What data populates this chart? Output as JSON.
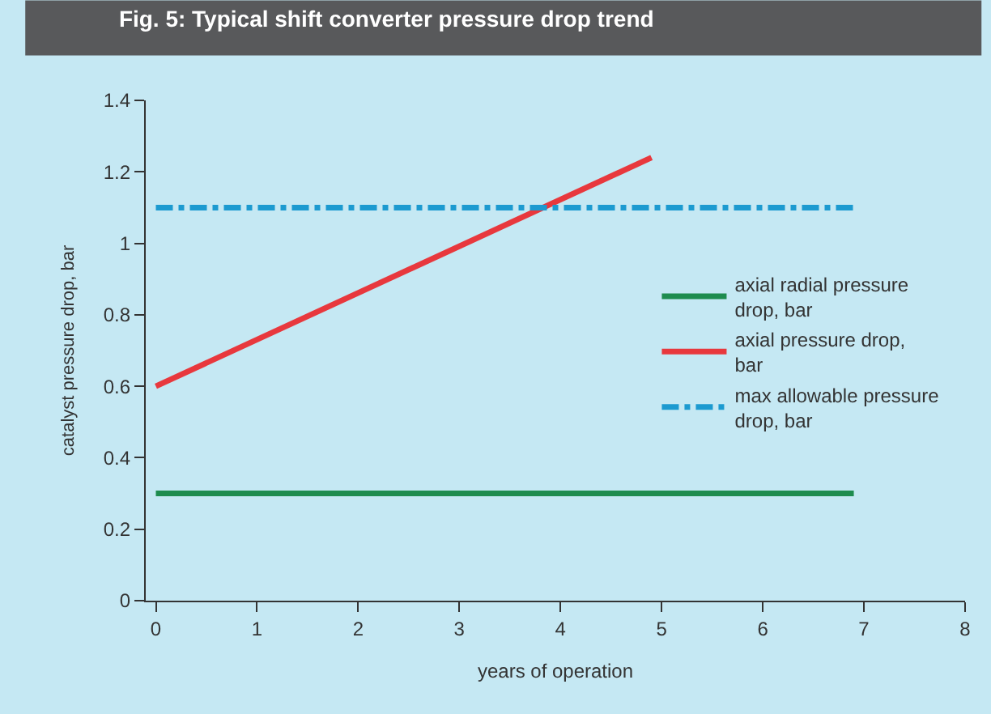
{
  "chart_data": {
    "type": "line",
    "title": "Fig. 5: Typical shift converter pressure drop trend",
    "xlabel": "years of operation",
    "ylabel": "catalyst pressure drop, bar",
    "series": [
      {
        "name": "axial radial pressure drop, bar",
        "color": "#1e8c4e",
        "x": [
          0,
          6.9
        ],
        "values": [
          0.3,
          0.3
        ],
        "line_style": "solid"
      },
      {
        "name": "axial pressure drop, bar",
        "color": "#e8383d",
        "x": [
          0,
          4.9
        ],
        "values": [
          0.6,
          1.24
        ],
        "line_style": "solid"
      },
      {
        "name": "max allowable pressure drop, bar",
        "color": "#1c9ad0",
        "x": [
          0,
          6.9
        ],
        "values": [
          1.1,
          1.1
        ],
        "line_style": "dashdot"
      }
    ],
    "xlim": [
      -0.1,
      8
    ],
    "ylim": [
      0,
      1.4
    ],
    "xticks": [
      0,
      1,
      2,
      3,
      4,
      5,
      6,
      7,
      8
    ],
    "yticks": [
      0,
      0.2,
      0.4,
      0.6,
      0.8,
      1,
      1.2,
      1.4
    ],
    "grid": false,
    "legend": "right",
    "marker": "none"
  }
}
